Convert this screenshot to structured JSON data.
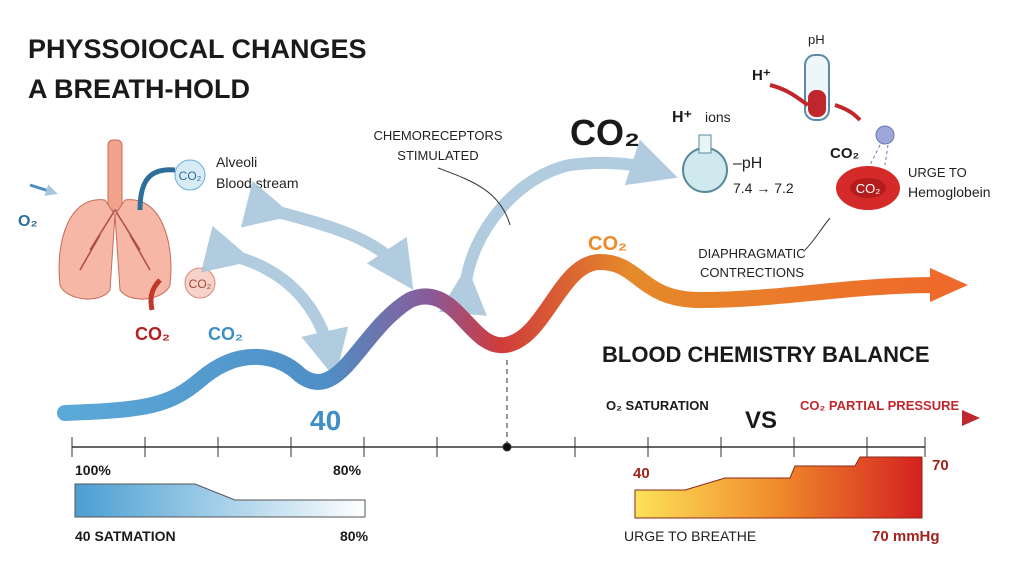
{
  "header": {
    "title_lines": [
      "PHYSSOIOCAL CHANGES",
      "A BREATH-HOLD"
    ]
  },
  "lungs": {
    "in_co2": "CO₂",
    "alveoli": "Alveoli",
    "bloodstream": "Blood stream",
    "o2": "O₂",
    "out_co2_bubble": "CO₂",
    "out_co2": "CO₂",
    "wave_co2": "CO₂"
  },
  "chemoreceptors": {
    "lines": [
      "CHEMORECEPTORS",
      "STIMULATED"
    ],
    "co2": "CO₂"
  },
  "ph_panel": {
    "h_ions": "H⁺",
    "ions": "ions",
    "ph": "–pH",
    "change": "7.4 → 7.2",
    "tube_ph": "pH",
    "tube_h": "H⁺"
  },
  "hemoglobin": {
    "co2": "CO₂",
    "cell_co2": "CO₂",
    "urge": "URGE TO",
    "label": "Hemoglobein"
  },
  "wave": {
    "peak_co2": "CO₂",
    "level": "40"
  },
  "diaphragm": {
    "lines": [
      "DIAPHRAGMATIC",
      "CONTRECTIONS"
    ]
  },
  "balance": {
    "title": "BLOOD CHEMISTRY BALANCE",
    "left": "O₂ SATURATION",
    "vs": "VS",
    "right": "CO₂ PARTIAL PRESSURE"
  },
  "left_bar": {
    "start": "100%",
    "end": "80%",
    "caption": "40 SATMATION",
    "caption_end": "80%"
  },
  "right_bar": {
    "start": "40",
    "end": "70",
    "caption": "URGE TO BREATHE",
    "caption_end": "70 mmHg"
  }
}
